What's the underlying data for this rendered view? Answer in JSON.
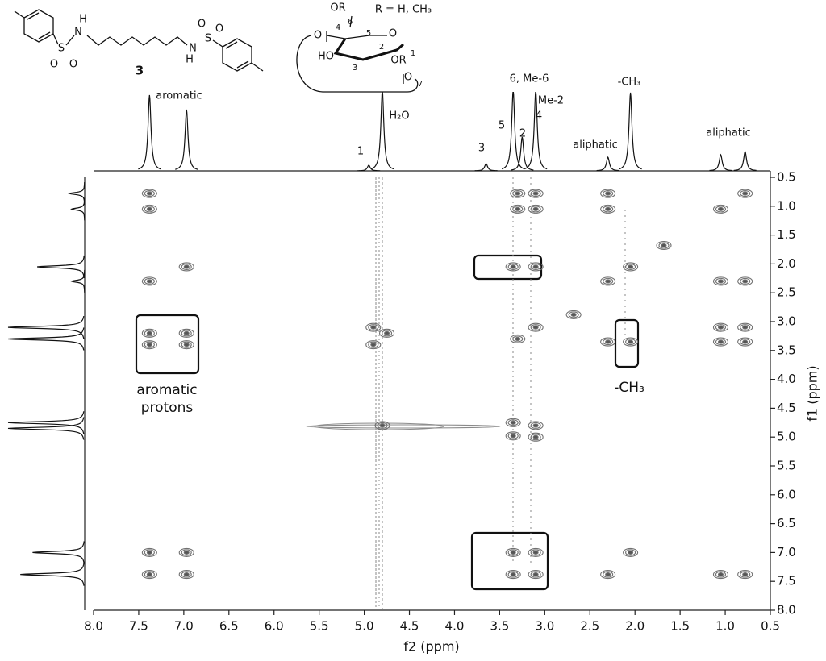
{
  "chart_data": {
    "type": "scatter",
    "xlabel": "f2 (ppm)",
    "ylabel": "f1 (ppm)",
    "xlim": [
      8.0,
      0.5
    ],
    "ylim": [
      0.5,
      8.0
    ],
    "xticks": [
      {
        "value": 8,
        "label": "8.0"
      },
      7.5,
      {
        "value": 7,
        "label": "7.0"
      },
      6.5,
      {
        "value": 6,
        "label": "6.0"
      },
      5.5,
      {
        "value": 5,
        "label": "5.0"
      },
      4.5,
      {
        "value": 4,
        "label": "4.0"
      },
      3.5,
      {
        "value": 3,
        "label": "3.0"
      },
      2.5,
      {
        "value": 2,
        "label": "2.0"
      },
      1.5,
      {
        "value": 1,
        "label": "1.0"
      },
      0.5
    ],
    "yticks": [
      0.5,
      {
        "value": 1,
        "label": "1.0"
      },
      1.5,
      {
        "value": 2,
        "label": "2.0"
      },
      2.5,
      {
        "value": 3,
        "label": "3.0"
      },
      3.5,
      {
        "value": 4,
        "label": "4.0"
      },
      4.5,
      {
        "value": 5,
        "label": "5.0"
      },
      5.5,
      {
        "value": 6,
        "label": "6.0"
      },
      6.5,
      {
        "value": 7,
        "label": "7.0"
      },
      7.5,
      {
        "value": 8,
        "label": "8.0"
      }
    ],
    "color": "#707070",
    "x": [
      7.38,
      7.38,
      6.97,
      7.38,
      7.38,
      7.38,
      6.97,
      6.97,
      7.38,
      6.97,
      7.38,
      6.97,
      4.9,
      4.9,
      4.75,
      4.8,
      3.3,
      3.1,
      3.3,
      3.1,
      3.35,
      3.1,
      3.3,
      3.1,
      3.35,
      3.35,
      3.1,
      3.1,
      3.35,
      3.1,
      3.35,
      3.1,
      2.3,
      2.3,
      2.3,
      2.05,
      2.3,
      2.05,
      2.05,
      2.3,
      1.05,
      0.78,
      1.05,
      0.78,
      1.05,
      0.78,
      1.05,
      0.78,
      1.05,
      0.78,
      1.68,
      2.68
    ],
    "y": [
      0.78,
      1.05,
      2.05,
      2.3,
      3.2,
      3.4,
      3.2,
      3.4,
      7.0,
      7.0,
      7.38,
      7.38,
      3.1,
      3.4,
      3.2,
      4.8,
      0.78,
      0.78,
      1.05,
      1.05,
      2.05,
      2.05,
      3.3,
      3.1,
      4.75,
      4.98,
      4.8,
      5.0,
      7.0,
      7.0,
      7.38,
      7.38,
      0.78,
      1.05,
      2.3,
      2.05,
      3.35,
      3.35,
      7.0,
      7.38,
      1.05,
      0.78,
      2.3,
      2.3,
      3.35,
      3.35,
      3.1,
      3.1,
      7.38,
      7.38,
      1.68,
      2.88
    ],
    "top_spectrum": {
      "ppm": [
        7.38,
        6.97,
        4.8,
        4.95,
        3.65,
        3.35,
        3.25,
        3.1,
        2.3,
        2.05,
        1.05,
        0.78
      ],
      "height": [
        94,
        76,
        100,
        7,
        9,
        100,
        42,
        100,
        17,
        97,
        20,
        24
      ]
    },
    "left_spectrum": {
      "ppm": [
        0.78,
        1.05,
        2.05,
        2.3,
        3.1,
        3.3,
        4.75,
        4.85,
        7.0,
        7.38
      ],
      "height": [
        20,
        17,
        62,
        17,
        100,
        100,
        100,
        100,
        68,
        84
      ]
    },
    "annotations": [
      "aromatic",
      "H₂O",
      "1",
      "3",
      "5",
      "2",
      "6, Me-6",
      "Me-2",
      "4",
      "aliphatic",
      "-CH₃",
      "aliphatic",
      "aromatic",
      "protons",
      "-CH₃"
    ],
    "structure_labels": [
      "H",
      "N",
      "S",
      "O",
      "O",
      "N",
      "H",
      "S",
      "O",
      "O",
      "3",
      "OR",
      "R = H, CH₃",
      "O",
      "4",
      "6",
      "5",
      "O",
      "HO",
      "3",
      "2",
      "OR",
      "1",
      "O",
      "7"
    ]
  }
}
